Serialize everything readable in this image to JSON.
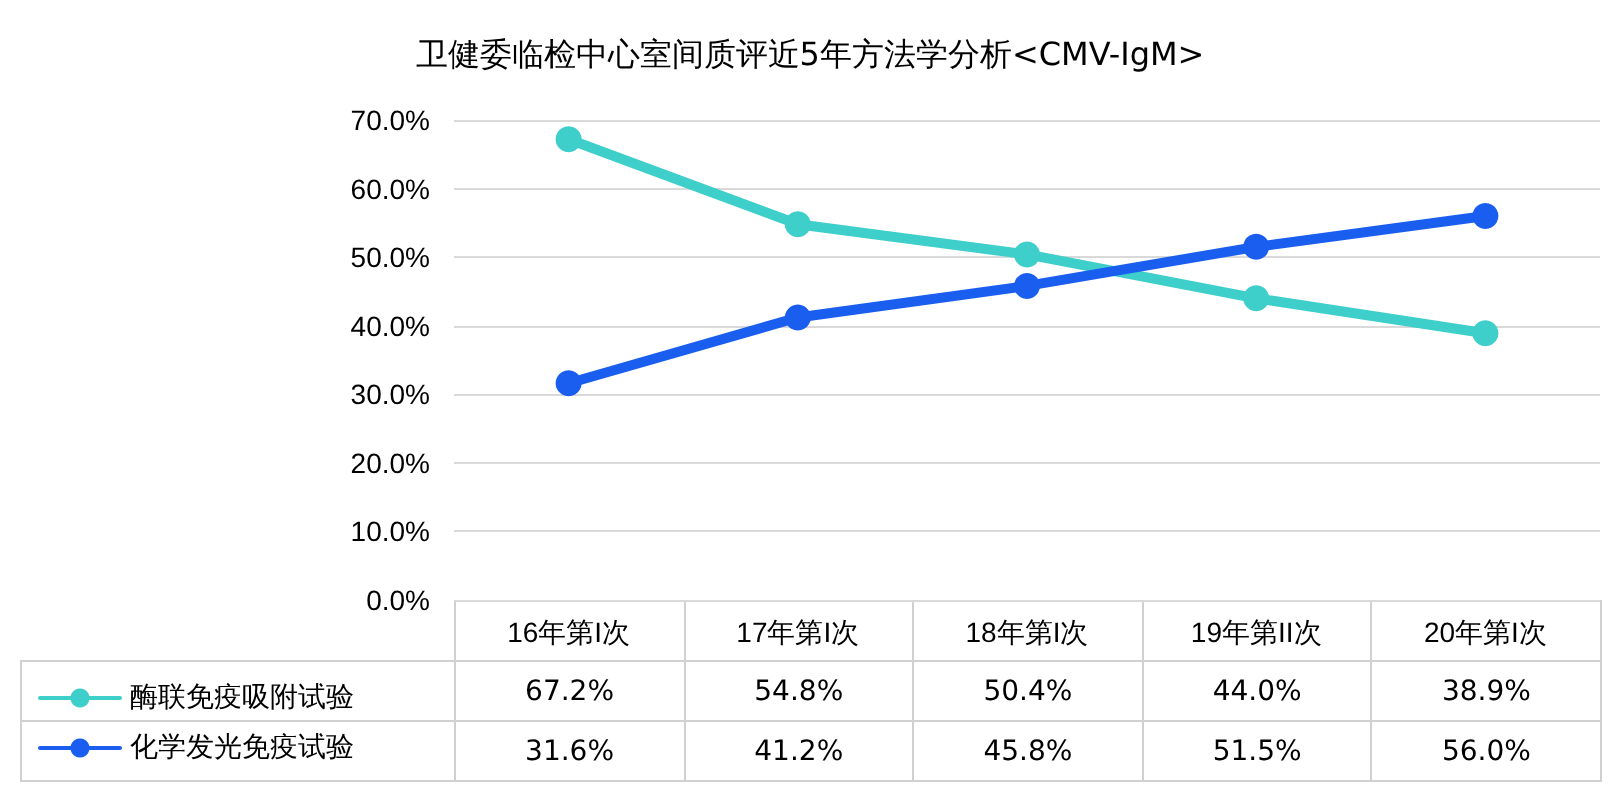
{
  "chart_data": {
    "type": "line",
    "title": "卫健委临检中心室间质评近5年方法学分析<CMV-IgM>",
    "categories": [
      "16年第I次",
      "17年第I次",
      "18年第I次",
      "19年第II次",
      "20年第I次"
    ],
    "series": [
      {
        "name": "酶联免疫吸附试验",
        "color": "#3ecfcb",
        "values": [
          67.2,
          54.8,
          50.4,
          44.0,
          38.9
        ],
        "value_labels": [
          "67.2%",
          "54.8%",
          "50.4%",
          "44.0%",
          "38.9%"
        ]
      },
      {
        "name": "化学发光免疫试验",
        "color": "#1a5ef0",
        "values": [
          31.6,
          41.2,
          45.8,
          51.5,
          56.0
        ],
        "value_labels": [
          "31.6%",
          "41.2%",
          "45.8%",
          "51.5%",
          "56.0%"
        ]
      }
    ],
    "ylim": [
      0,
      70
    ],
    "yticks": [
      {
        "value": 0,
        "label": "0.0%"
      },
      {
        "value": 10,
        "label": "10.0%"
      },
      {
        "value": 20,
        "label": "20.0%"
      },
      {
        "value": 30,
        "label": "30.0%"
      },
      {
        "value": 40,
        "label": "40.0%"
      },
      {
        "value": 50,
        "label": "50.0%"
      },
      {
        "value": 60,
        "label": "60.0%"
      },
      {
        "value": 70,
        "label": "70.0%"
      }
    ],
    "grid": "y",
    "legend": "bottom left",
    "marker": "circle",
    "line_style": "solid"
  }
}
